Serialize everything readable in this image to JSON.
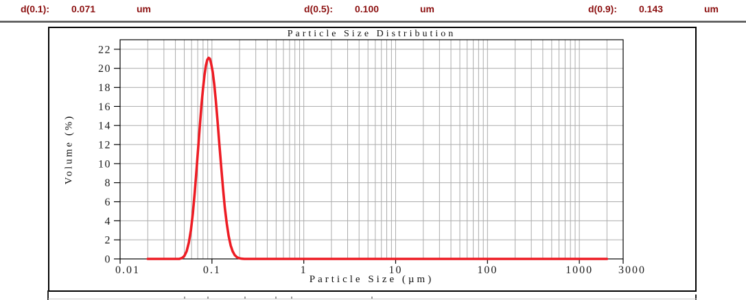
{
  "header": {
    "metrics": [
      {
        "label": "d(0.1):",
        "value": "0.071",
        "unit": "um"
      },
      {
        "label": "d(0.5):",
        "value": "0.100",
        "unit": "um"
      },
      {
        "label": "d(0.9):",
        "value": "0.143",
        "unit": "um"
      }
    ]
  },
  "chart_data": {
    "type": "line",
    "title": "Particle Size Distribution",
    "xlabel": "Particle Size (µm)",
    "ylabel": "Volume (%)",
    "x_scale": "log",
    "xlim": [
      0.01,
      3000
    ],
    "ylim": [
      0,
      23
    ],
    "x_ticks": [
      0.01,
      0.1,
      1,
      10,
      100,
      1000,
      3000
    ],
    "x_tick_labels": [
      "0.01",
      "0.1",
      "1",
      "10",
      "100",
      "1000",
      "3000"
    ],
    "y_ticks": [
      0,
      2,
      4,
      6,
      8,
      10,
      12,
      14,
      16,
      18,
      20,
      22
    ],
    "grid": true,
    "legend": "none",
    "series": [
      {
        "name": "volume-distribution",
        "color": "#ed1c24",
        "points": [
          [
            0.02,
            0
          ],
          [
            0.044,
            0
          ],
          [
            0.047,
            0.08
          ],
          [
            0.05,
            0.3
          ],
          [
            0.053,
            0.8
          ],
          [
            0.056,
            1.7
          ],
          [
            0.059,
            3.0
          ],
          [
            0.062,
            4.8
          ],
          [
            0.065,
            7.0
          ],
          [
            0.068,
            9.4
          ],
          [
            0.071,
            11.8
          ],
          [
            0.074,
            14.1
          ],
          [
            0.077,
            16.2
          ],
          [
            0.08,
            17.9
          ],
          [
            0.083,
            19.3
          ],
          [
            0.086,
            20.3
          ],
          [
            0.089,
            20.9
          ],
          [
            0.092,
            21.1
          ],
          [
            0.095,
            21.0
          ],
          [
            0.098,
            20.5
          ],
          [
            0.102,
            19.6
          ],
          [
            0.106,
            18.3
          ],
          [
            0.11,
            16.7
          ],
          [
            0.115,
            14.5
          ],
          [
            0.12,
            12.2
          ],
          [
            0.126,
            9.7
          ],
          [
            0.132,
            7.4
          ],
          [
            0.138,
            5.4
          ],
          [
            0.145,
            3.7
          ],
          [
            0.152,
            2.4
          ],
          [
            0.16,
            1.4
          ],
          [
            0.168,
            0.8
          ],
          [
            0.177,
            0.4
          ],
          [
            0.187,
            0.18
          ],
          [
            0.198,
            0.07
          ],
          [
            0.212,
            0.02
          ],
          [
            0.225,
            0
          ],
          [
            2000,
            0
          ]
        ]
      }
    ],
    "colors": {
      "grid": "#ababab",
      "frame": "#000000",
      "tick": "#000000"
    }
  },
  "colors": {
    "header_text": "#8b0f0f",
    "rule": "#4f4f4f"
  }
}
